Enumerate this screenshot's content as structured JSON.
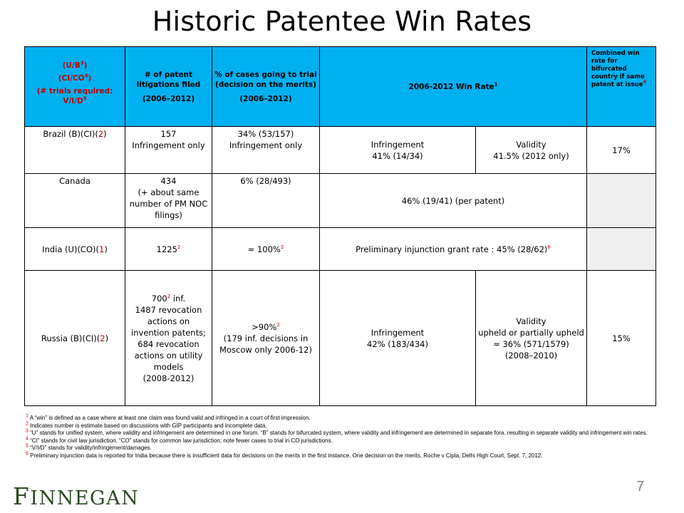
{
  "title": "Historic Patentee Win Rates",
  "header": {
    "col1_line1": "(U/B",
    "col1_line1_sup": "3",
    "col1_line1_end": ")",
    "col1_line2": "(CI/CO",
    "col1_line2_sup": "4",
    "col1_line2_end": ")",
    "col1_line3": "(# trials required: V/I/D",
    "col1_line3_sup": "5",
    "col2_line1": "# of patent litigations filed",
    "col2_line2": "(2006–2012)",
    "col3_line1": "% of cases going to trial (decision on the merits)",
    "col3_line2": "(2006–2012)",
    "col4": "2006-2012 Win Rate",
    "col4_sup": "1",
    "col5": "Combined win rate for bifurcated country if same patent at issue",
    "col5_sup": "4"
  },
  "rows": {
    "brazil": {
      "country": "Brazil (B)(CI)(",
      "trials": "2",
      "filed": "157\nInfringement only",
      "trial_pct": "34% (53/157)\nInfringement only",
      "infringement": "Infringement\n41% (14/34)",
      "validity": "Validity\n41.5% (2012 only)",
      "combined": "17%"
    },
    "canada": {
      "country": "Canada",
      "filed": "434\n(+ about same number of PM NOC filings)",
      "trial_pct": "6% (28/493)",
      "win_rate": "46% (19/41) (per patent)"
    },
    "india": {
      "country": "India (U)(CO)(",
      "trials": "1",
      "filed": "1225",
      "filed_sup": "2",
      "trial_pct": "≈ 100%",
      "trial_pct_sup": "2",
      "win_rate": "Preliminary injunction grant rate : 45% (28/62)",
      "win_rate_sup": "6"
    },
    "russia": {
      "country": "Russia (B)(CI)(",
      "trials": "2",
      "filed_a": "700",
      "filed_a_sup": "2",
      "filed_a_end": " inf.",
      "filed_b": "1487 revocation actions on invention patents;\n684 revocation actions on utility models\n(2008-2012)",
      "trial_pct_a": ">90%",
      "trial_pct_a_sup": "2",
      "trial_pct_b": "(179 inf. decisions in Moscow only 2006-12)",
      "infringement": "Infringement\n42% (183/434)",
      "validity": "Validity\nupheld or partially upheld ≈ 36% (571/1579)\n(2008–2010)",
      "combined": "15%"
    }
  },
  "footnotes": [
    {
      "num": "1",
      "text": " A “win” is defined as a case where at least one claim was found valid and infringed in a court of first impression."
    },
    {
      "num": "2",
      "text": " Indicates number is estimate based on discussions with GIP participants and incomplete data."
    },
    {
      "num": "3",
      "text": " “U” stands for unified system, where validity and infringement are determined in one forum.  “B” stands for bifurcated system, where validity and infringement are determined in separate fora. resulting in separate validity and infringement win rates."
    },
    {
      "num": "4",
      "text": " “CI” stands for civil law jurisdiction, “CO” stands for common law jurisdiction; note fewer cases to trial in CO jurisdictions."
    },
    {
      "num": "5",
      "text": " “V/I/D” stands for validity/infringement/damages."
    },
    {
      "num": "6",
      "text": " Preliminary injunction data is reported for India because there is insufficient data for decisions on the merits in the first instance. One decision on the merits, Roche v Cipla, Delhi High Court, Sept. 7, 2012."
    }
  ],
  "logo": {
    "first": "F",
    "rest": "INNEGAN"
  },
  "page_number": "7",
  "colors": {
    "header_bg": "#00b0f0",
    "accent_red": "#c00000",
    "logo_green": "#2c4a22",
    "grey_cell": "#efefef"
  }
}
